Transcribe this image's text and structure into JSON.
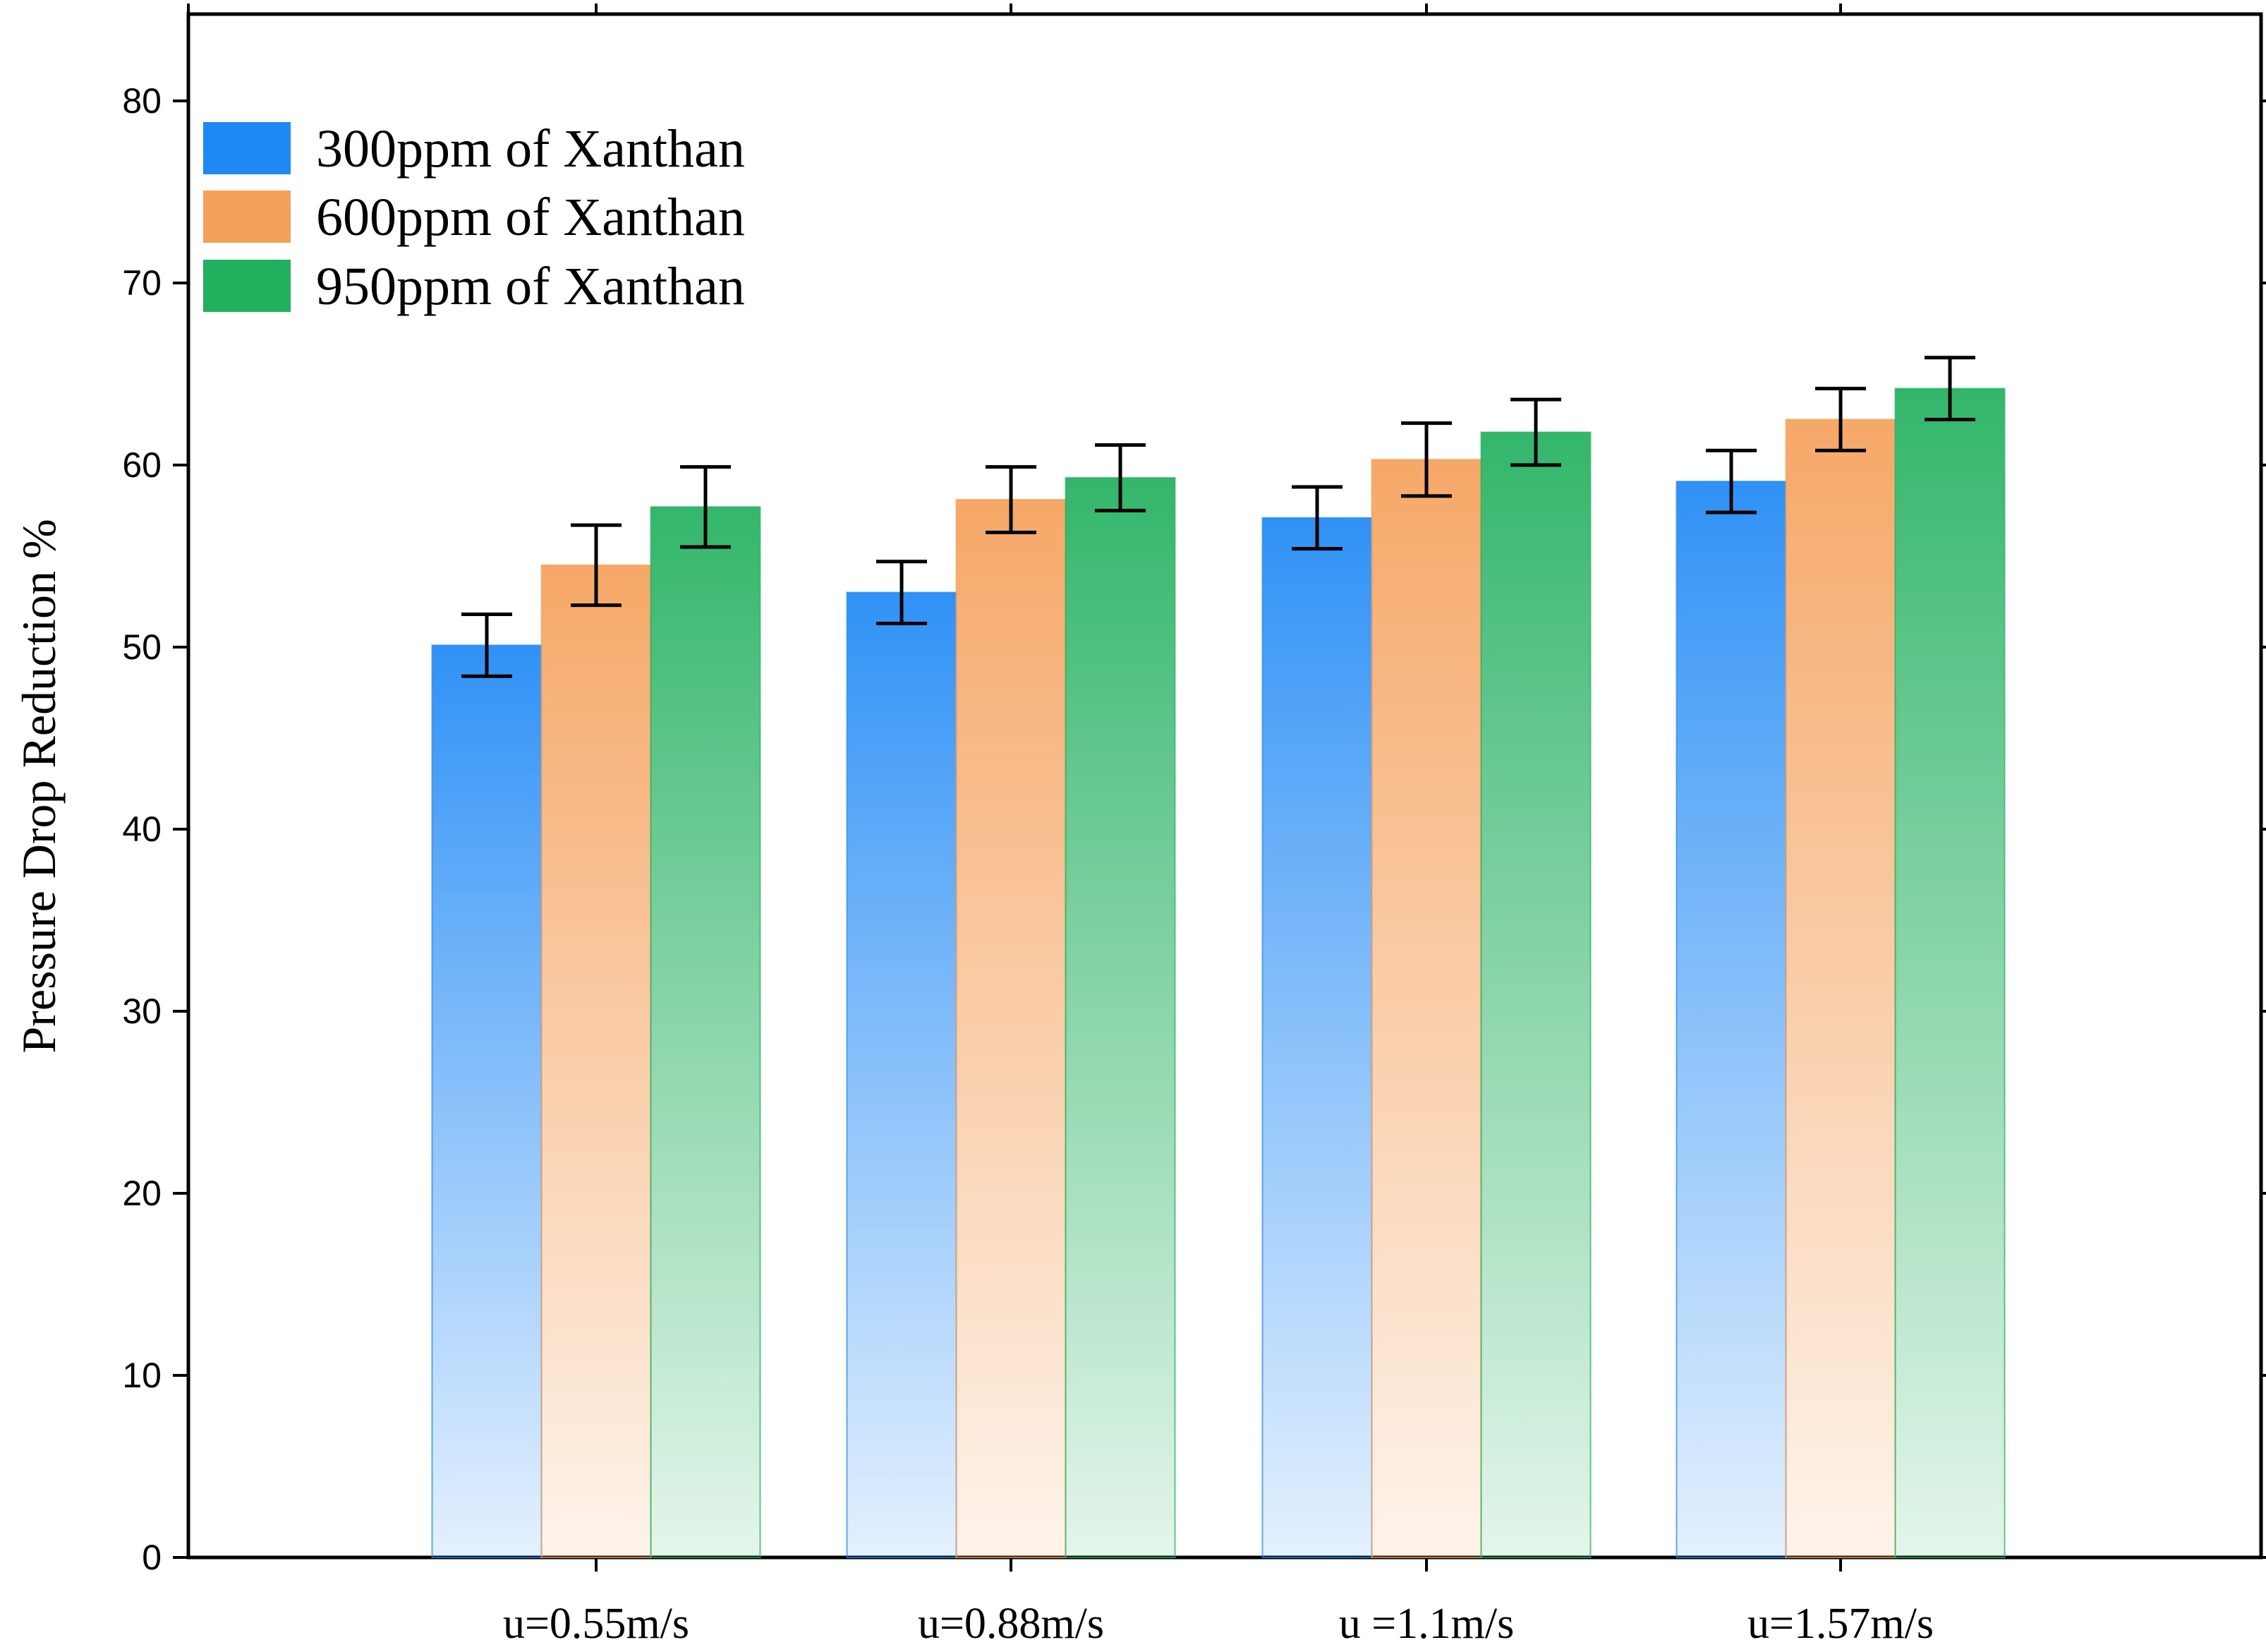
{
  "chart_data": {
    "type": "bar",
    "title": "",
    "xlabel": "",
    "ylabel": "Pressure Drop Reduction %",
    "categories": [
      "u=0.55m/s",
      "u=0.88m/s",
      "u =1.1m/s",
      "u=1.57m/s"
    ],
    "ylim": [
      0,
      85
    ],
    "yticks": [
      0,
      10,
      20,
      30,
      40,
      50,
      60,
      70,
      80
    ],
    "legend_position": "top-left",
    "series": [
      {
        "name": "300ppm of Xanthan",
        "color": "#1E88F5",
        "values": [
          50.1,
          53.0,
          57.1,
          59.1
        ],
        "error": [
          1.7,
          1.7,
          1.7,
          1.7
        ]
      },
      {
        "name": "600ppm of Xanthan",
        "color": "#F5A05A",
        "values": [
          54.5,
          58.1,
          60.3,
          62.5
        ],
        "error": [
          2.2,
          1.8,
          2.0,
          1.7
        ]
      },
      {
        "name": "950ppm of Xanthan",
        "color": "#21B05E",
        "values": [
          57.7,
          59.3,
          61.8,
          64.2
        ],
        "error": [
          2.2,
          1.8,
          1.8,
          1.7
        ]
      }
    ]
  }
}
